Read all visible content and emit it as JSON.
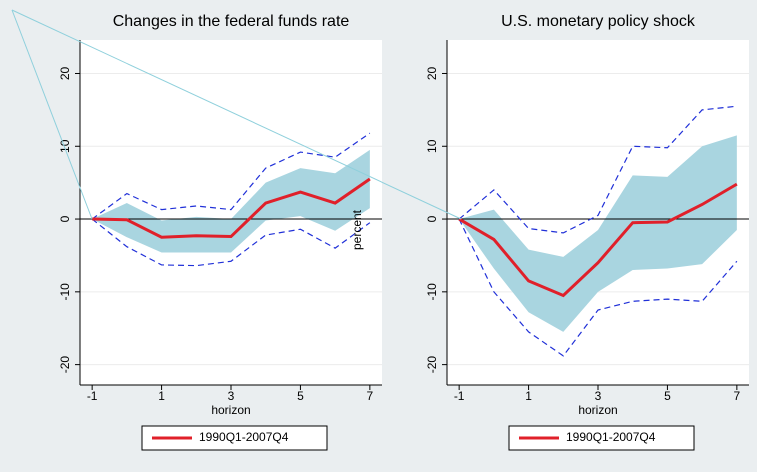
{
  "chart_data": [
    {
      "type": "line",
      "title": "Changes in the federal funds rate",
      "xlabel": "horizon",
      "ylabel": "percent",
      "x": [
        -1,
        0,
        1,
        2,
        3,
        4,
        5,
        6,
        7
      ],
      "xlim": [
        -1.35,
        7.35
      ],
      "xticks": [
        -1,
        1,
        3,
        5,
        7
      ],
      "ylim": [
        -22.8,
        24.6
      ],
      "yticks": [
        -20,
        -10,
        0,
        10,
        20
      ],
      "grid": true,
      "series": [
        {
          "name": "1990Q1-2007Q4",
          "color": "#e0202a",
          "values": [
            0,
            -0.1,
            -2.5,
            -2.3,
            -2.4,
            2.2,
            3.7,
            2.2,
            5.5
          ]
        }
      ],
      "band": {
        "color": "#a9d5e0",
        "upper": [
          0,
          2.2,
          -0.2,
          0.3,
          0,
          5,
          7,
          6.3,
          9.5
        ],
        "lower": [
          0,
          -2.5,
          -4.6,
          -4.6,
          -4.6,
          -0.2,
          0.4,
          -1.6,
          1.5
        ]
      },
      "bounds": {
        "color": "#2030d8",
        "upper": [
          0,
          3.5,
          1.3,
          1.8,
          1.3,
          7,
          9.2,
          8.5,
          11.8
        ],
        "lower": [
          0,
          -3.8,
          -6.3,
          -6.4,
          -5.8,
          -2.2,
          -1.4,
          -4,
          -0.5
        ]
      }
    },
    {
      "type": "line",
      "title": "U.S. monetary policy shock",
      "xlabel": "horizon",
      "x": [
        -1,
        0,
        1,
        2,
        3,
        4,
        5,
        6,
        7
      ],
      "xlim": [
        -1.35,
        7.35
      ],
      "xticks": [
        -1,
        1,
        3,
        5,
        7
      ],
      "ylim": [
        -22.8,
        24.6
      ],
      "yticks": [
        -20,
        -10,
        0,
        10,
        20
      ],
      "grid": true,
      "series": [
        {
          "name": "1990Q1-2007Q4",
          "color": "#e0202a",
          "values": [
            0,
            -2.8,
            -8.5,
            -10.5,
            -6,
            -0.5,
            -0.4,
            2,
            4.8
          ]
        }
      ],
      "band": {
        "color": "#a9d5e0",
        "upper": [
          0,
          1.3,
          -4.2,
          -5.2,
          -1.5,
          6,
          5.8,
          10,
          11.5
        ],
        "lower": [
          0,
          -6.8,
          -12.8,
          -15.5,
          -10,
          -7,
          -6.8,
          -6.2,
          -1.5
        ]
      },
      "bounds": {
        "color": "#2030d8",
        "upper": [
          0,
          4,
          -1.3,
          -1.9,
          0.5,
          10,
          9.8,
          15,
          15.5
        ],
        "lower": [
          0,
          -10,
          -15.5,
          -18.8,
          -12.5,
          -11.3,
          -11,
          -11.3,
          -5.8
        ]
      }
    }
  ]
}
